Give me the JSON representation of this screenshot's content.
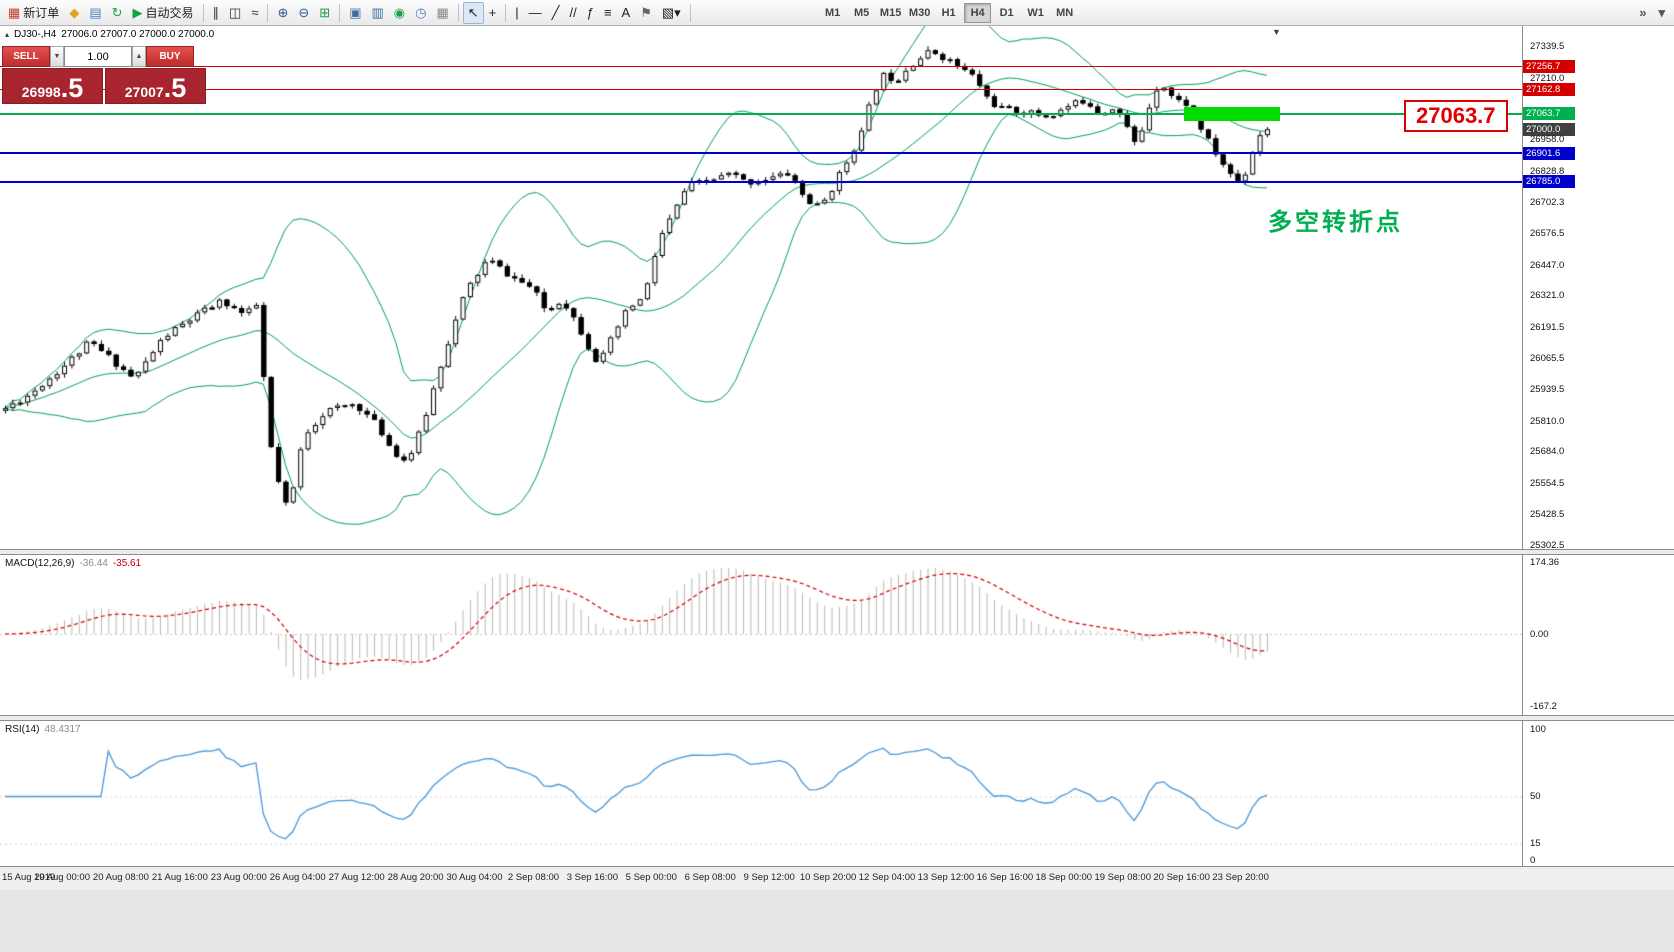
{
  "colors": {
    "badges": {
      "red": "#d40000",
      "green": "#00b050",
      "blue": "#0000cc",
      "dark": "#404040"
    },
    "bollinger": "#00a050",
    "bull": "#ffffff",
    "bear": "#000000",
    "wick": "#000000",
    "macd_hist": "#b8b8b8",
    "macd_signal": "#d40000",
    "rsi_line": "#4a96d9",
    "zone": "#00dd00"
  },
  "toolbar": {
    "groups": [
      {
        "items": [
          {
            "name": "new-order-button",
            "icon": "new-order-icon",
            "glyph": "▦",
            "color": "#c23b2e",
            "label": "新订单"
          },
          {
            "name": "market-watch-button",
            "icon": "market-watch-icon",
            "glyph": "◆",
            "color": "#e2a41c"
          },
          {
            "name": "data-window-button",
            "icon": "data-window-icon",
            "glyph": "▤",
            "color": "#4a7ec2"
          },
          {
            "name": "navigator-button",
            "icon": "navigator-icon",
            "glyph": "↻",
            "color": "#18a048"
          },
          {
            "name": "autotrade-button",
            "icon": "autotrade-icon",
            "glyph": "▶",
            "color": "#18a048",
            "label": "自动交易"
          }
        ]
      },
      {
        "items": [
          {
            "name": "bar-chart-button",
            "icon": "bar-chart-icon",
            "glyph": "∥",
            "color": "#303030"
          },
          {
            "name": "candlestick-chart-button",
            "icon": "candlestick-icon",
            "glyph": "◫",
            "color": "#303030"
          },
          {
            "name": "line-chart-button",
            "icon": "line-chart-icon",
            "glyph": "≈",
            "color": "#303030"
          }
        ]
      },
      {
        "items": [
          {
            "name": "zoom-in-button",
            "icon": "zoom-in-icon",
            "glyph": "⊕",
            "color": "#305890"
          },
          {
            "name": "zoom-out-button",
            "icon": "zoom-out-icon",
            "glyph": "⊖",
            "color": "#305890"
          },
          {
            "name": "tile-windows-button",
            "icon": "tile-windows-icon",
            "glyph": "⊞",
            "color": "#18a048"
          }
        ]
      },
      {
        "items": [
          {
            "name": "new-chart-button",
            "icon": "new-chart-icon",
            "glyph": "▣",
            "color": "#3c6e9e"
          },
          {
            "name": "chart-profiles-button",
            "icon": "chart-profiles-icon",
            "glyph": "▥",
            "color": "#3c6e9e"
          },
          {
            "name": "strategy-tester-button",
            "icon": "strategy-tester-icon",
            "glyph": "◉",
            "color": "#18a048"
          },
          {
            "name": "clock-button",
            "icon": "clock-icon",
            "glyph": "◷",
            "color": "#4a7ec2"
          },
          {
            "name": "grid-button",
            "icon": "grid-icon",
            "glyph": "▦",
            "color": "#888888"
          }
        ]
      },
      {
        "items": [
          {
            "name": "cursor-button",
            "icon": "cursor-icon",
            "glyph": "↖",
            "color": "#202020",
            "active": true
          },
          {
            "name": "crosshair-button",
            "icon": "crosshair-icon",
            "glyph": "+",
            "color": "#202020"
          }
        ]
      },
      {
        "items": [
          {
            "name": "vertical-line-button",
            "icon": "vertical-line-icon",
            "glyph": "|",
            "color": "#202020"
          },
          {
            "name": "horizontal-line-button",
            "icon": "horizontal-line-icon",
            "glyph": "—",
            "color": "#202020"
          },
          {
            "name": "trendline-button",
            "icon": "trendline-icon",
            "glyph": "╱",
            "color": "#202020"
          },
          {
            "name": "channel-button",
            "icon": "channel-icon",
            "glyph": "//",
            "color": "#202020"
          },
          {
            "name": "fibonacci-button",
            "icon": "fibonacci-icon",
            "glyph": "ƒ",
            "color": "#202020"
          },
          {
            "name": "levels-button",
            "icon": "levels-icon",
            "glyph": "≡",
            "color": "#202020"
          },
          {
            "name": "text-tool-button",
            "icon": "text-tool-icon",
            "glyph": "A",
            "color": "#202020"
          },
          {
            "name": "label-tool-button",
            "icon": "label-tool-icon",
            "glyph": "⚑",
            "color": "#666666"
          },
          {
            "name": "shapes-button",
            "icon": "shapes-icon",
            "glyph": "▧▾",
            "color": "#202020"
          }
        ]
      }
    ],
    "timeframes": [
      "M1",
      "M5",
      "M15",
      "M30",
      "H1",
      "H4",
      "D1",
      "W1",
      "MN"
    ],
    "active_timeframe": "H4",
    "right_buttons": [
      {
        "name": "toolbar-overflow-button",
        "icon": "overflow-icon",
        "glyph": "»"
      },
      {
        "name": "toolbar-options-button",
        "icon": "chevron-down-icon",
        "glyph": "▾"
      }
    ]
  },
  "chart": {
    "panel_toggle": "▴",
    "title_symbol": "DJ30-,H4",
    "ohlc": "27006.0 27007.0 27000.0 27000.0",
    "shift_marker": "▼",
    "annotation": "多空转折点",
    "big_price_label": "27063.7",
    "trade_panel": {
      "sell_label": "SELL",
      "buy_label": "BUY",
      "volume": "1.00",
      "spin_down": "▼",
      "spin_up": "▲",
      "sell_main": "26998",
      "sell_pips": ".5",
      "buy_main": "27007",
      "buy_pips": ".5"
    }
  },
  "macd": {
    "label": "MACD(12,26,9)",
    "value_main": "-36.44",
    "value_signal": "-35.61",
    "axis": [
      "174.36",
      "0.00",
      "-167.2"
    ]
  },
  "rsi": {
    "label": "RSI(14)",
    "value": "48.4317",
    "axis": [
      "100",
      "50",
      "15",
      "0"
    ]
  },
  "chart_data": {
    "type": "candlestick",
    "symbol": "DJ30-",
    "period": "H4",
    "ohlc_line": "27006.0 27007.0 27000.0 27000.0",
    "last_close": 27000.0,
    "candle_count": 172,
    "seed": 11,
    "price_anchors": [
      [
        0,
        25850
      ],
      [
        4,
        25920
      ],
      [
        8,
        26020
      ],
      [
        12,
        26130
      ],
      [
        15,
        26060
      ],
      [
        18,
        25980
      ],
      [
        22,
        26150
      ],
      [
        27,
        26250
      ],
      [
        30,
        26300
      ],
      [
        33,
        26240
      ],
      [
        35,
        26290
      ],
      [
        36,
        25780
      ],
      [
        38,
        25500
      ],
      [
        39,
        25440
      ],
      [
        41,
        25750
      ],
      [
        44,
        25850
      ],
      [
        48,
        25880
      ],
      [
        51,
        25790
      ],
      [
        53,
        25690
      ],
      [
        55,
        25640
      ],
      [
        57,
        25780
      ],
      [
        60,
        26080
      ],
      [
        63,
        26340
      ],
      [
        66,
        26470
      ],
      [
        69,
        26400
      ],
      [
        72,
        26350
      ],
      [
        74,
        26250
      ],
      [
        76,
        26310
      ],
      [
        78,
        26210
      ],
      [
        80,
        26090
      ],
      [
        81,
        26040
      ],
      [
        83,
        26160
      ],
      [
        85,
        26270
      ],
      [
        87,
        26310
      ],
      [
        88,
        26400
      ],
      [
        89,
        26540
      ],
      [
        91,
        26650
      ],
      [
        93,
        26770
      ],
      [
        96,
        26790
      ],
      [
        99,
        26820
      ],
      [
        101,
        26780
      ],
      [
        104,
        26800
      ],
      [
        107,
        26820
      ],
      [
        109,
        26710
      ],
      [
        111,
        26680
      ],
      [
        113,
        26780
      ],
      [
        115,
        26890
      ],
      [
        117,
        27010
      ],
      [
        118,
        27140
      ],
      [
        120,
        27240
      ],
      [
        121,
        27190
      ],
      [
        123,
        27260
      ],
      [
        126,
        27320
      ],
      [
        128,
        27290
      ],
      [
        130,
        27250
      ],
      [
        132,
        27210
      ],
      [
        134,
        27110
      ],
      [
        136,
        27080
      ],
      [
        139,
        27070
      ],
      [
        142,
        27050
      ],
      [
        145,
        27100
      ],
      [
        147,
        27120
      ],
      [
        149,
        27060
      ],
      [
        151,
        27100
      ],
      [
        154,
        26920
      ],
      [
        155,
        27050
      ],
      [
        157,
        27200
      ],
      [
        159,
        27120
      ],
      [
        161,
        27100
      ],
      [
        163,
        26980
      ],
      [
        165,
        26880
      ],
      [
        167,
        26800
      ],
      [
        168,
        26780
      ],
      [
        169,
        26850
      ],
      [
        170,
        26950
      ],
      [
        171,
        27000
      ]
    ],
    "indicators": [
      {
        "name": "Bollinger Bands",
        "period": 20,
        "deviation": 2
      },
      {
        "name": "MACD",
        "fast": 12,
        "slow": 26,
        "signal": 9,
        "values": [
          -36.44,
          -35.61
        ]
      },
      {
        "name": "RSI",
        "period": 14,
        "value": 48.4317
      }
    ],
    "h_lines": [
      {
        "price": 27256.7,
        "color": "#d40000",
        "width": 1
      },
      {
        "price": 27162.8,
        "color": "#d40000",
        "width": 1
      },
      {
        "price": 27063.7,
        "color": "#00b050",
        "width": 2
      },
      {
        "price": 26901.6,
        "color": "#0000cc",
        "width": 2
      },
      {
        "price": 26785.0,
        "color": "#0000cc",
        "width": 2
      }
    ],
    "green_zone": {
      "from_index": 160,
      "to_index": 173,
      "price_top": 27092,
      "price_bottom": 27034
    },
    "y_ticks": [
      {
        "t": "27339.5"
      },
      {
        "t": "27256.7",
        "badge": "red"
      },
      {
        "t": "27210.0"
      },
      {
        "t": "27162.8",
        "badge": "red"
      },
      {
        "t": "27063.7",
        "badge": "green"
      },
      {
        "t": "27000.0",
        "badge": "dark"
      },
      {
        "t": "26958.0"
      },
      {
        "t": "26901.6",
        "badge": "blue"
      },
      {
        "t": "26828.8"
      },
      {
        "t": "26785.0",
        "badge": "blue"
      },
      {
        "t": "26702.3"
      },
      {
        "t": "26576.5"
      },
      {
        "t": "26447.0"
      },
      {
        "t": "26321.0"
      },
      {
        "t": "26191.5"
      },
      {
        "t": "26065.5"
      },
      {
        "t": "25939.5"
      },
      {
        "t": "25810.0"
      },
      {
        "t": "25684.0"
      },
      {
        "t": "25554.5"
      },
      {
        "t": "25428.5"
      },
      {
        "t": "25302.5"
      }
    ],
    "x_ticks": [
      "15 Aug 2019",
      "19 Aug 00:00",
      "20 Aug 08:00",
      "21 Aug 16:00",
      "23 Aug 00:00",
      "26 Aug 04:00",
      "27 Aug 12:00",
      "28 Aug 20:00",
      "30 Aug 04:00",
      "2 Sep 08:00",
      "3 Sep 16:00",
      "5 Sep 00:00",
      "6 Sep 08:00",
      "9 Sep 12:00",
      "10 Sep 20:00",
      "12 Sep 04:00",
      "13 Sep 12:00",
      "16 Sep 16:00",
      "18 Sep 00:00",
      "19 Sep 08:00",
      "20 Sep 16:00",
      "23 Sep 20:00"
    ]
  }
}
